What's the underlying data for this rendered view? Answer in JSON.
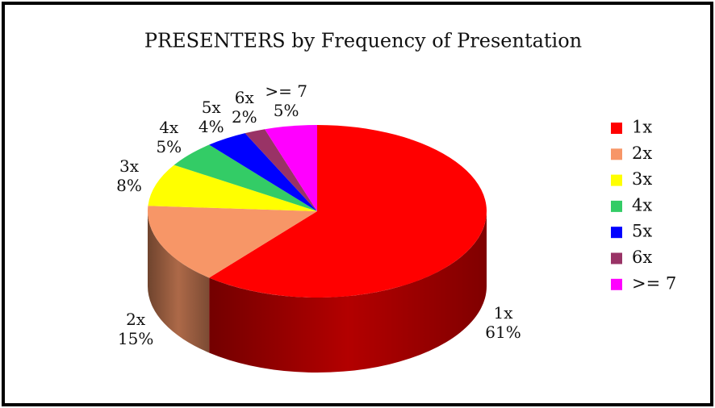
{
  "chart_data": {
    "type": "pie3d",
    "title": "PRESENTERS by Frequency of Presentation",
    "categories": [
      "1x",
      "2x",
      "3x",
      "4x",
      "5x",
      "6x",
      ">= 7"
    ],
    "values": [
      61,
      15,
      8,
      5,
      4,
      2,
      5
    ],
    "value_labels": [
      "61%",
      "15%",
      "8%",
      "5%",
      "4%",
      "2%",
      "5%"
    ],
    "colors": [
      "#ff0000",
      "#f79667",
      "#ffff00",
      "#33cc66",
      "#0000ff",
      "#993366",
      "#ff00ff"
    ],
    "legend": "right"
  }
}
